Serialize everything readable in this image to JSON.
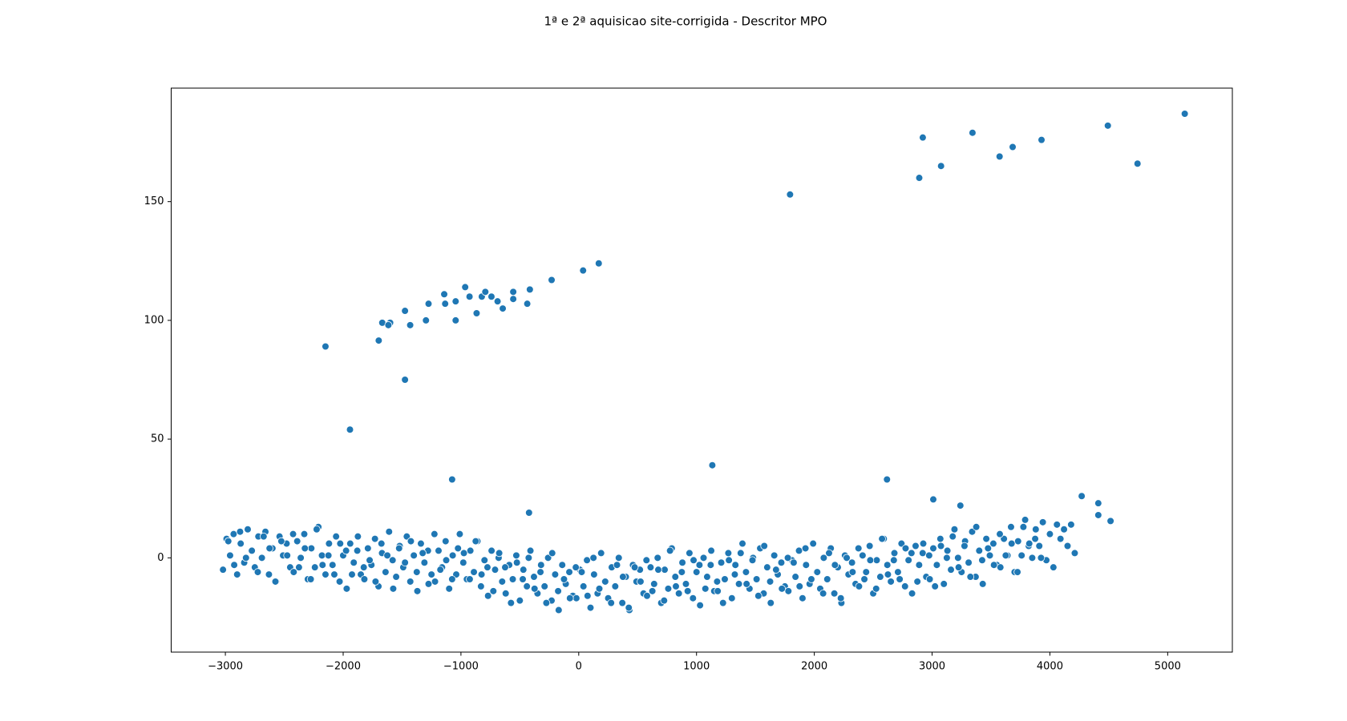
{
  "chart_data": {
    "type": "scatter",
    "title": "1ª e 2ª aquisicao site-corrigida - Descritor MPO",
    "color": "#1f77b4",
    "xlim": [
      -3460,
      5549
    ],
    "ylim": [
      -39.7,
      197.8
    ],
    "xticks": [
      {
        "value": -3000,
        "label": "−3000"
      },
      {
        "value": -2000,
        "label": "−2000"
      },
      {
        "value": -1000,
        "label": "−1000"
      },
      0,
      1000,
      2000,
      3000,
      4000,
      5000
    ],
    "yticks": [
      0,
      50,
      100,
      150
    ],
    "grid": false,
    "x": [
      -3020,
      -2990,
      -2960,
      -2930,
      -2900,
      -2870,
      -2840,
      -2810,
      -2780,
      -2750,
      -2720,
      -2690,
      -2660,
      -2630,
      -2600,
      -2570,
      -2540,
      -2510,
      -2480,
      -2450,
      -2420,
      -2390,
      -2360,
      -2330,
      -2300,
      -2270,
      -2240,
      -2210,
      -2180,
      -2150,
      -2120,
      -2090,
      -2060,
      -2030,
      -2000,
      -1970,
      -1940,
      -1910,
      -1880,
      -1850,
      -1820,
      -1790,
      -1760,
      -1730,
      -1700,
      -1670,
      -1640,
      -1610,
      -1580,
      -1550,
      -1520,
      -1490,
      -1460,
      -1430,
      -1400,
      -1370,
      -1340,
      -1310,
      -1280,
      -1250,
      -1220,
      -1190,
      -1160,
      -1130,
      -1100,
      -1070,
      -1040,
      -1010,
      -980,
      -950,
      -920,
      -890,
      -860,
      -830,
      -800,
      -770,
      -740,
      -710,
      -680,
      -650,
      -620,
      -590,
      -560,
      -530,
      -500,
      -470,
      -440,
      -410,
      -380,
      -350,
      -320,
      -290,
      -260,
      -230,
      -200,
      -170,
      -140,
      -110,
      -80,
      -50,
      -20,
      10,
      40,
      70,
      100,
      130,
      160,
      190,
      220,
      250,
      280,
      310,
      340,
      370,
      400,
      430,
      460,
      490,
      520,
      550,
      580,
      610,
      640,
      670,
      700,
      730,
      760,
      790,
      820,
      850,
      880,
      910,
      940,
      970,
      1000,
      1030,
      1060,
      1090,
      1120,
      1150,
      1180,
      1210,
      1240,
      1270,
      1300,
      1330,
      1360,
      1390,
      1420,
      1450,
      1480,
      1510,
      1540,
      1570,
      1600,
      1630,
      1660,
      1690,
      1720,
      1750,
      1780,
      1810,
      1840,
      1870,
      1900,
      1930,
      1960,
      1990,
      2020,
      2050,
      2080,
      2110,
      2140,
      2170,
      2200,
      2230,
      2260,
      2290,
      2320,
      2350,
      2380,
      2410,
      2440,
      2470,
      2500,
      2530,
      2560,
      2590,
      2620,
      2650,
      2680,
      2710,
      2740,
      2770,
      2800,
      2830,
      2860,
      2890,
      2920,
      2950,
      2980,
      3010,
      3040,
      3070,
      3100,
      3130,
      3160,
      3190,
      3220,
      3250,
      3280,
      3310,
      3340,
      3370,
      3400,
      3430,
      3460,
      3490,
      3520,
      3550,
      3580,
      3610,
      3640,
      3670,
      3700,
      3730,
      3760,
      3790,
      3820,
      3850,
      3880,
      3910,
      3940,
      3970,
      4000,
      4030,
      4060,
      4090,
      4120,
      4150,
      4180,
      -2975,
      -2925,
      -2875,
      -2825,
      -2775,
      -2725,
      -2675,
      -2625,
      -2575,
      -2525,
      -2475,
      -2425,
      -2375,
      -2325,
      -2275,
      -2225,
      -2175,
      -2125,
      -2075,
      -2025,
      -1975,
      -1925,
      -1875,
      -1825,
      -1775,
      -1725,
      -1675,
      -1625,
      -1575,
      -1525,
      -1475,
      -1425,
      -1375,
      -1325,
      -1275,
      -1225,
      -1175,
      -1125,
      -1075,
      -1025,
      -975,
      -925,
      -875,
      -825,
      -775,
      -725,
      -675,
      -625,
      -575,
      -525,
      -475,
      -425,
      -375,
      -325,
      -275,
      -225,
      -175,
      -125,
      -75,
      -25,
      25,
      75,
      125,
      175,
      225,
      275,
      325,
      375,
      425,
      475,
      525,
      575,
      625,
      675,
      725,
      775,
      825,
      875,
      925,
      975,
      1025,
      1075,
      1125,
      1175,
      1225,
      1275,
      1325,
      1375,
      1425,
      1475,
      1525,
      1575,
      1625,
      1675,
      1725,
      1775,
      1825,
      1875,
      1925,
      1975,
      2025,
      2075,
      2125,
      2175,
      2225,
      2275,
      2325,
      2375,
      2425,
      2475,
      2525,
      2575,
      2625,
      2675,
      2725,
      2775,
      2825,
      2875,
      2925,
      2975,
      3025,
      3075,
      3125,
      3175,
      3225,
      3275,
      3325,
      3375,
      3425,
      3475,
      3525,
      3575,
      3625,
      3675,
      3725,
      3775,
      3825,
      3875,
      3925,
      -2150,
      -1942,
      -1698,
      -1668,
      -1601,
      -1616,
      -1475,
      -1475,
      -1431,
      -1297,
      -1275,
      -1142,
      -1134,
      -1045,
      -1045,
      -964,
      -927,
      -867,
      -823,
      -793,
      -741,
      -689,
      -645,
      -556,
      -556,
      -437,
      -415,
      -230,
      37,
      170,
      1794,
      2891,
      2921,
      3076,
      3343,
      3573,
      3684,
      3929,
      4492,
      4744,
      5145,
      1134,
      2617,
      -1075,
      4270,
      4411,
      4411,
      4515,
      3010,
      3240,
      -422,
      4211
    ],
    "y": [
      -5,
      8,
      1,
      10,
      -7,
      6,
      -2,
      12,
      3,
      -4,
      9,
      0,
      11,
      -7,
      4,
      -10,
      9,
      1,
      6,
      -4,
      -6,
      7,
      0,
      10,
      -9,
      4,
      -4,
      13,
      1,
      -7,
      6,
      -3,
      9,
      -10,
      1,
      -13,
      6,
      -2,
      3,
      -7,
      -9,
      4,
      -3,
      8,
      -12,
      2,
      -6,
      11,
      -1,
      -8,
      5,
      -4,
      9,
      -10,
      1,
      -14,
      6,
      -2,
      3,
      -7,
      -10,
      3,
      -4,
      7,
      -13,
      1,
      -7,
      10,
      -2,
      -9,
      3,
      -6,
      7,
      -12,
      -1,
      -16,
      3,
      -5,
      0,
      -10,
      -15,
      -3,
      -9,
      1,
      -18,
      -5,
      -12,
      3,
      -8,
      -15,
      -3,
      -12,
      0,
      -18,
      -7,
      -22,
      -3,
      -11,
      -6,
      -16,
      -17,
      -5,
      -12,
      -1,
      -21,
      -7,
      -15,
      2,
      -10,
      -17,
      -4,
      -12,
      0,
      -19,
      -8,
      -22,
      -3,
      -10,
      -5,
      -15,
      -16,
      -4,
      -11,
      0,
      -19,
      -5,
      -13,
      4,
      -8,
      -15,
      -2,
      -11,
      2,
      -17,
      -6,
      -20,
      0,
      -8,
      -3,
      -14,
      -14,
      -2,
      -9,
      2,
      -17,
      -3,
      -11,
      6,
      -6,
      -13,
      0,
      -9,
      4,
      -15,
      -4,
      -19,
      1,
      -7,
      -2,
      -12,
      -14,
      -1,
      -8,
      3,
      -17,
      -3,
      -11,
      6,
      -6,
      -13,
      0,
      -9,
      4,
      -15,
      -4,
      -19,
      1,
      -7,
      -2,
      -11,
      -12,
      1,
      -6,
      5,
      -15,
      -1,
      -8,
      8,
      -3,
      -10,
      2,
      -6,
      6,
      -12,
      -1,
      -15,
      5,
      -3,
      2,
      -8,
      -9,
      4,
      -3,
      8,
      -11,
      3,
      -5,
      12,
      0,
      -6,
      7,
      -2,
      11,
      -8,
      3,
      -11,
      8,
      1,
      6,
      -3,
      -4,
      8,
      1,
      13,
      -6,
      7,
      1,
      16,
      5,
      0,
      12,
      5,
      15,
      -1,
      10,
      -4,
      14,
      8,
      12,
      5,
      14,
      7,
      -3,
      11,
      0,
      3,
      -6,
      9,
      4,
      -10,
      7,
      1,
      10,
      -4,
      4,
      -9,
      12,
      -3,
      1,
      -7,
      6,
      3,
      -7,
      9,
      -4,
      -1,
      -10,
      6,
      1,
      -13,
      4,
      -2,
      7,
      -6,
      2,
      -11,
      10,
      -5,
      -1,
      -9,
      4,
      2,
      -9,
      7,
      -7,
      -4,
      -14,
      2,
      -4,
      -19,
      -2,
      -9,
      0,
      -13,
      -6,
      -19,
      2,
      -14,
      -9,
      -17,
      -4,
      -6,
      -16,
      0,
      -13,
      -10,
      -19,
      -3,
      -8,
      -21,
      -4,
      -10,
      -1,
      -14,
      -5,
      -18,
      3,
      -12,
      -6,
      -14,
      -1,
      -3,
      -13,
      3,
      -10,
      -19,
      -1,
      -7,
      2,
      -11,
      -1,
      -16,
      5,
      -10,
      -5,
      -13,
      0,
      -2,
      -12,
      4,
      -9,
      -6,
      -15,
      2,
      -3,
      -17,
      0,
      -6,
      4,
      -9,
      -1,
      -13,
      8,
      -7,
      -1,
      -9,
      4,
      2,
      -10,
      6,
      1,
      -12,
      5,
      0,
      9,
      -4,
      5,
      -8,
      13,
      -1,
      4,
      -3,
      10,
      1,
      6,
      -6,
      13,
      6,
      8,
      0,
      89,
      54,
      91.5,
      99,
      99,
      98,
      75,
      104,
      98,
      100,
      107,
      111,
      107,
      108,
      100,
      114,
      110,
      103,
      110,
      112,
      110,
      108,
      105,
      112,
      109,
      107,
      113,
      117,
      121,
      124,
      153,
      160,
      177,
      165,
      179,
      169,
      173,
      176,
      182,
      166,
      187,
      39,
      33,
      33,
      26,
      23,
      18,
      15.5,
      24.6,
      22,
      19,
      2
    ]
  }
}
